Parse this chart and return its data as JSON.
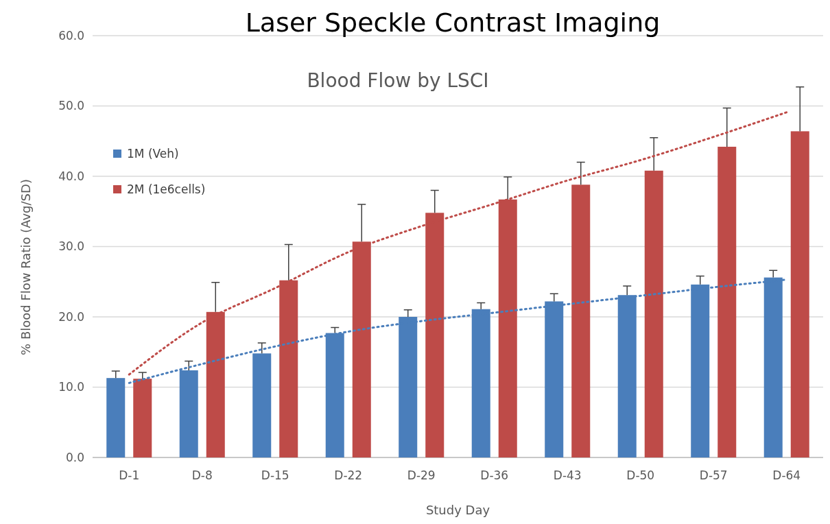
{
  "chart_data": {
    "type": "bar",
    "title": "Laser Speckle Contrast Imaging",
    "subtitle": "Blood Flow by LSCI",
    "xlabel": "Study Day",
    "ylabel": "% Blood Flow Ratio (Avg/SD)",
    "categories": [
      "D-1",
      "D-8",
      "D-15",
      "D-22",
      "D-29",
      "D-36",
      "D-43",
      "D-50",
      "D-57",
      "D-64"
    ],
    "series": [
      {
        "name": "1M (Veh)",
        "color": "#4a7ebb",
        "values": [
          11.3,
          12.4,
          14.8,
          17.7,
          20.0,
          21.1,
          22.2,
          23.1,
          24.6,
          25.6
        ],
        "errors": [
          1.0,
          1.3,
          1.5,
          0.8,
          1.0,
          0.9,
          1.1,
          1.3,
          1.2,
          1.0
        ]
      },
      {
        "name": "2M (1e6cells)",
        "color": "#be4b48",
        "values": [
          11.2,
          20.7,
          25.2,
          30.7,
          34.8,
          36.7,
          38.8,
          40.8,
          44.2,
          46.4
        ],
        "errors": [
          0.9,
          4.2,
          5.1,
          5.3,
          3.2,
          3.2,
          3.2,
          4.7,
          5.5,
          6.3
        ]
      },
      {
        "type": "line",
        "color": "#4a7ebb",
        "line_style": "dotted",
        "values": [
          10.6,
          13.3,
          15.8,
          17.9,
          19.4,
          20.6,
          21.8,
          23.0,
          24.2,
          25.3
        ]
      },
      {
        "type": "line",
        "color": "#be4b48",
        "line_style": "dotted",
        "values": [
          11.8,
          19.2,
          24.1,
          29.2,
          32.9,
          36.1,
          39.4,
          42.3,
          45.6,
          49.1
        ]
      }
    ],
    "ylim": [
      0,
      60
    ],
    "yticks": [
      {
        "value": 0,
        "label": "0.0"
      },
      {
        "value": 10,
        "label": "10.0"
      },
      {
        "value": 20,
        "label": "20.0"
      },
      {
        "value": 30,
        "label": "30.0"
      },
      {
        "value": 40,
        "label": "40.0"
      },
      {
        "value": 50,
        "label": "50.0"
      },
      {
        "value": 60,
        "label": "60.0"
      }
    ],
    "grid": "y",
    "legend": "top left"
  }
}
